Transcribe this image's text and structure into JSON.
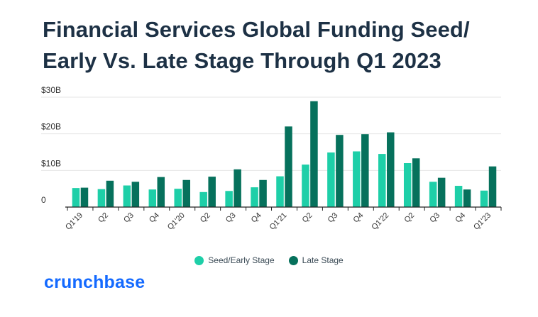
{
  "title": "Financial Services Global Funding Seed/ Early Vs. Late Stage Through Q1 2023",
  "logo_text": "crunchbase",
  "colors": {
    "seed": "#1ecfa8",
    "late": "#06715c",
    "title": "#1d3145",
    "brand": "#146aff",
    "grid": "#e6e6e6",
    "axis": "#222222"
  },
  "legend": [
    {
      "label": "Seed/Early Stage",
      "color": "#1ecfa8"
    },
    {
      "label": "Late Stage",
      "color": "#06715c"
    }
  ],
  "chart_data": {
    "type": "bar",
    "title": "Financial Services Global Funding Seed/ Early Vs. Late Stage Through Q1 2023",
    "xlabel": "",
    "ylabel": "",
    "ylim": [
      0,
      30
    ],
    "yticks": [
      0,
      10,
      20,
      30
    ],
    "ytick_labels": [
      "0",
      "$10B",
      "$20B",
      "$30B"
    ],
    "grid": true,
    "legend_position": "bottom-center",
    "categories": [
      "Q1'19",
      "Q2",
      "Q3",
      "Q4",
      "Q1'20",
      "Q2",
      "Q3",
      "Q4",
      "Q1'21",
      "Q2",
      "Q3",
      "Q4",
      "Q1'22",
      "Q2",
      "Q3",
      "Q4",
      "Q1'23"
    ],
    "series": [
      {
        "name": "Seed/Early Stage",
        "values": [
          5.2,
          4.9,
          5.9,
          4.8,
          5.0,
          4.1,
          4.4,
          5.4,
          8.4,
          11.6,
          14.9,
          15.2,
          14.5,
          12.0,
          6.9,
          5.8,
          4.5
        ]
      },
      {
        "name": "Late Stage",
        "values": [
          5.3,
          7.2,
          6.9,
          8.2,
          7.4,
          8.3,
          10.3,
          7.4,
          22.0,
          28.9,
          19.7,
          19.9,
          20.4,
          13.3,
          8.0,
          4.8,
          11.1
        ]
      }
    ]
  }
}
